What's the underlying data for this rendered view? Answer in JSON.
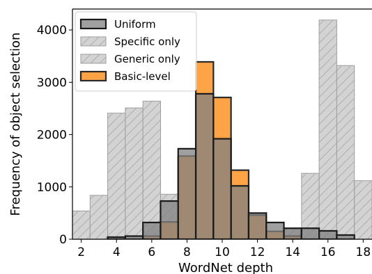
{
  "chart_data": {
    "type": "bar",
    "xlabel": "WordNet depth",
    "ylabel": "Frequency of object selection",
    "xlim": [
      1.5,
      18.5
    ],
    "ylim": [
      0,
      4400
    ],
    "x_ticks": [
      2,
      4,
      6,
      8,
      10,
      12,
      14,
      16,
      18
    ],
    "y_ticks": [
      0,
      1000,
      2000,
      3000,
      4000
    ],
    "legend_position": "top-left",
    "x": [
      2,
      3,
      4,
      5,
      6,
      7,
      8,
      9,
      10,
      11,
      12,
      13,
      14,
      15,
      16,
      17,
      18
    ],
    "series": [
      {
        "name": "Uniform",
        "style": "gray",
        "color": "#808080",
        "values": [
          0,
          0,
          40,
          60,
          320,
          730,
          1730,
          2780,
          1920,
          1020,
          500,
          320,
          210,
          210,
          160,
          80,
          0
        ]
      },
      {
        "name": "Specific only",
        "style": "hatched",
        "color": "#d3d3d3",
        "values": [
          0,
          0,
          0,
          0,
          0,
          0,
          0,
          0,
          0,
          0,
          0,
          0,
          200,
          1260,
          4190,
          3320,
          1120
        ]
      },
      {
        "name": "Generic only",
        "style": "hatched",
        "color": "#d3d3d3",
        "values": [
          540,
          840,
          2410,
          2510,
          2640,
          860,
          0,
          0,
          0,
          0,
          0,
          0,
          0,
          0,
          0,
          0,
          0
        ]
      },
      {
        "name": "Basic-level",
        "style": "orange",
        "color": "#ff9933",
        "values": [
          0,
          0,
          0,
          0,
          60,
          330,
          1590,
          3390,
          2710,
          1320,
          460,
          150,
          60,
          0,
          0,
          0,
          0
        ]
      }
    ]
  }
}
